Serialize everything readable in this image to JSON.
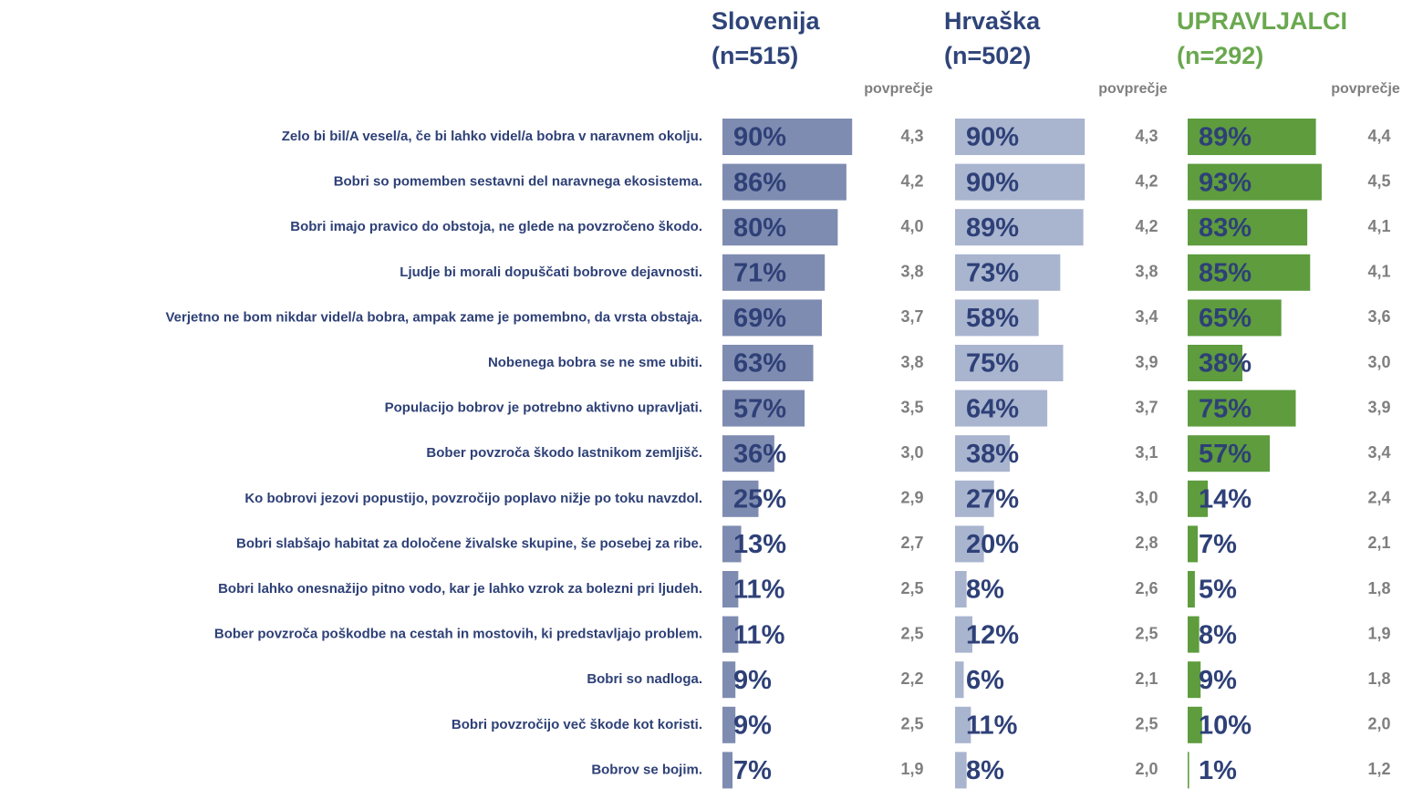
{
  "chart_data": {
    "type": "bar",
    "orientation": "horizontal",
    "xlim": [
      0,
      100
    ],
    "average_label": "povprečje",
    "categories": [
      "Zelo bi bil/A vesel/a, če bi lahko videl/a bobra v naravnem okolju.",
      "Bobri so pomemben sestavni del naravnega ekosistema.",
      "Bobri imajo pravico do obstoja, ne glede na povzročeno škodo.",
      "Ljudje bi morali dopuščati bobrove dejavnosti.",
      "Verjetno ne bom nikdar videl/a bobra, ampak zame je pomembno, da vrsta obstaja.",
      "Nobenega bobra se ne sme ubiti.",
      "Populacijo bobrov je potrebno aktivno upravljati.",
      "Bober povzroča škodo lastnikom zemljišč.",
      "Ko bobrovi jezovi popustijo, povzročijo poplavo nižje po toku navzdol.",
      "Bobri slabšajo habitat za določene živalske skupine, še posebej za ribe.",
      "Bobri lahko onesnažijo pitno vodo, kar je lahko vzrok za bolezni pri ljudeh.",
      "Bober povzroča poškodbe na cestah in mostovih, ki predstavljajo problem.",
      "Bobri so nadloga.",
      "Bobri povzročijo več škode kot koristi.",
      "Bobrov se bojim."
    ],
    "series": [
      {
        "name": "Slovenija",
        "n_label": "(n=515)",
        "color": "#7f8cb1",
        "name_color": "#2f4479",
        "values": [
          90,
          86,
          80,
          71,
          69,
          63,
          57,
          36,
          25,
          13,
          11,
          11,
          9,
          9,
          7
        ],
        "value_labels": [
          "90%",
          "86%",
          "80%",
          "71%",
          "69%",
          "63%",
          "57%",
          "36%",
          "25%",
          "13%",
          "11%",
          "11%",
          "9%",
          "9%",
          "7%"
        ],
        "average_labels": [
          "4,3",
          "4,2",
          "4,0",
          "3,8",
          "3,7",
          "3,8",
          "3,5",
          "3,0",
          "2,9",
          "2,7",
          "2,5",
          "2,5",
          "2,2",
          "2,5",
          "1,9"
        ]
      },
      {
        "name": "Hrvaška",
        "n_label": "(n=502)",
        "color": "#a9b4cf",
        "name_color": "#2f4479",
        "values": [
          90,
          90,
          89,
          73,
          58,
          75,
          64,
          38,
          27,
          20,
          8,
          12,
          6,
          11,
          8
        ],
        "value_labels": [
          "90%",
          "90%",
          "89%",
          "73%",
          "58%",
          "75%",
          "64%",
          "38%",
          "27%",
          "20%",
          "8%",
          "12%",
          "6%",
          "11%",
          "8%"
        ],
        "average_labels": [
          "4,3",
          "4,2",
          "4,2",
          "3,8",
          "3,4",
          "3,9",
          "3,7",
          "3,1",
          "3,0",
          "2,8",
          "2,6",
          "2,5",
          "2,1",
          "2,5",
          "2,0"
        ]
      },
      {
        "name": "UPRAVLJALCI",
        "n_label": "(n=292)",
        "color": "#5e9c3e",
        "name_color": "#6aa84f",
        "values": [
          89,
          93,
          83,
          85,
          65,
          38,
          75,
          57,
          14,
          7,
          5,
          8,
          9,
          10,
          1
        ],
        "value_labels": [
          "89%",
          "93%",
          "83%",
          "85%",
          "65%",
          "38%",
          "75%",
          "57%",
          "14%",
          "7%",
          "5%",
          "8%",
          "9%",
          "10%",
          "1%"
        ],
        "average_labels": [
          "4,4",
          "4,5",
          "4,1",
          "4,1",
          "3,6",
          "3,0",
          "3,9",
          "3,4",
          "2,4",
          "2,1",
          "1,8",
          "1,9",
          "1,8",
          "2,0",
          "1,2"
        ]
      }
    ]
  }
}
